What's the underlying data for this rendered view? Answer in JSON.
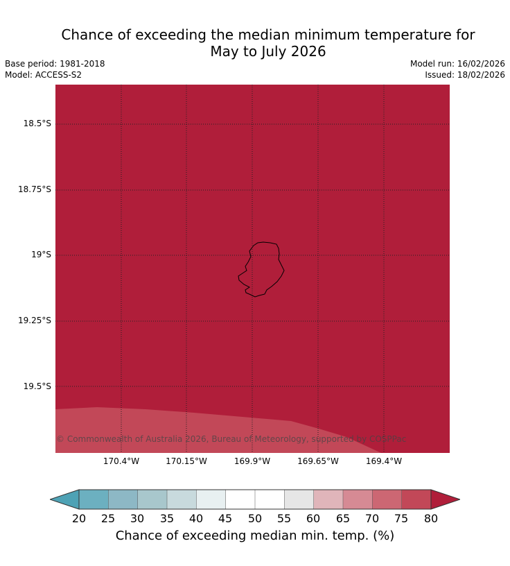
{
  "title_line1": "Chance of exceeding the median minimum temperature for",
  "title_line2": "May to July 2026",
  "meta_left": {
    "base_period": "Base period: 1981-2018",
    "model": "Model: ACCESS-S2"
  },
  "meta_right": {
    "model_run": "Model run: 16/02/2026",
    "issued": "Issued: 18/02/2026"
  },
  "map": {
    "lat_labels": [
      "18.5°S",
      "18.75°S",
      "19°S",
      "19.25°S",
      "19.5°S"
    ],
    "lon_labels": [
      "170.4°W",
      "170.15°W",
      "169.9°W",
      "169.65°W",
      "169.4°W"
    ],
    "copyright": "© Commonwealth of Australia 2026, Bureau of Meteorology, supported by COSPPac",
    "colors": {
      "main_fill": "#b01e3a",
      "lower_band": "#c24858",
      "coast": "#000000"
    }
  },
  "colorbar": {
    "tick_labels": [
      "20",
      "25",
      "30",
      "35",
      "40",
      "45",
      "50",
      "55",
      "60",
      "65",
      "70",
      "75",
      "80"
    ],
    "colors": [
      "#4ea2b5",
      "#6cb0c0",
      "#8db8c5",
      "#a8c7cc",
      "#c8dadd",
      "#e8f0f1",
      "#ffffff",
      "#ffffff",
      "#e6e6e6",
      "#e0b5ba",
      "#d68a94",
      "#cc6773",
      "#c24858",
      "#b01e3a"
    ],
    "title": "Chance of exceeding median min. temp. (%)"
  }
}
